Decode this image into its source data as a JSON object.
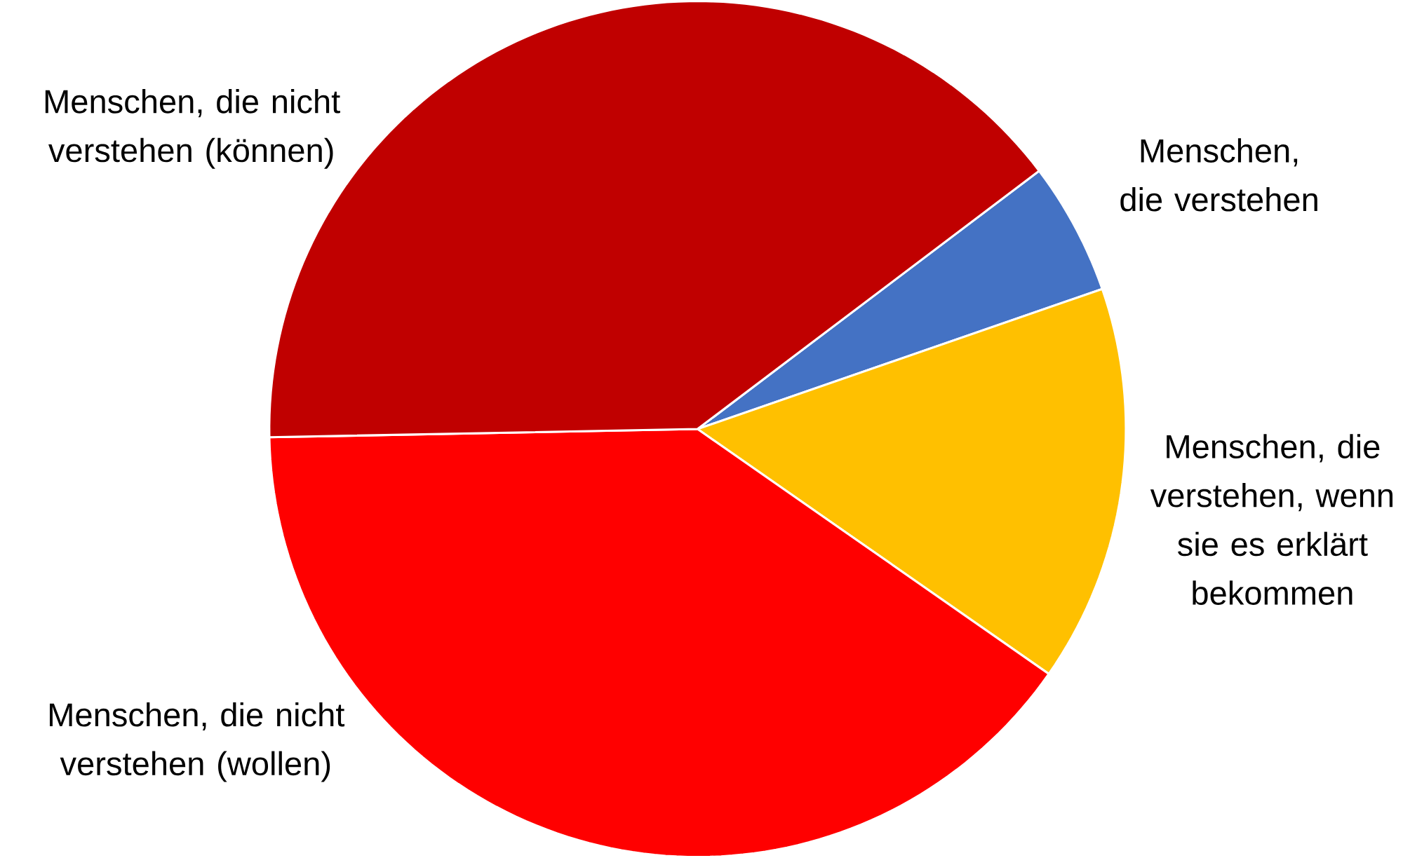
{
  "chart_data": {
    "type": "pie",
    "categories": [
      "Menschen, die verstehen",
      "Menschen, die verstehen, wenn sie es erklärt bekommen",
      "Menschen, die nicht verstehen (wollen)",
      "Menschen, die nicht verstehen (können)"
    ],
    "values": [
      5,
      15,
      40,
      40
    ],
    "colors": [
      "#4472c4",
      "#ffc000",
      "#ff0000",
      "#c00000"
    ]
  }
}
